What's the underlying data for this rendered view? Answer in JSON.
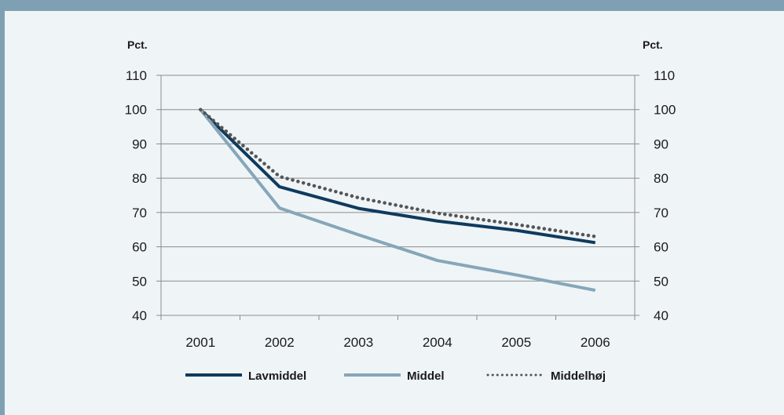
{
  "chart_data": {
    "type": "line",
    "categories": [
      "2001",
      "2002",
      "2003",
      "2004",
      "2005",
      "2006"
    ],
    "y_left": {
      "label": "Pct.",
      "ylim": [
        40,
        110
      ],
      "ticks": [
        40,
        50,
        60,
        70,
        80,
        90,
        100,
        110
      ]
    },
    "y_right": {
      "label": "Pct.",
      "ylim": [
        40,
        110
      ],
      "ticks": [
        40,
        50,
        60,
        70,
        80,
        90,
        100,
        110
      ]
    },
    "grid": true,
    "legend_position": "bottom",
    "series": [
      {
        "name": "Lavmiddel",
        "values": [
          100,
          77.5,
          71.2,
          67.5,
          64.8,
          61.2
        ],
        "color": "#0f3a5c",
        "style": "solid"
      },
      {
        "name": "Middel",
        "values": [
          100,
          71.3,
          63.5,
          56.0,
          51.8,
          47.3
        ],
        "color": "#86a6b9",
        "style": "solid"
      },
      {
        "name": "Middelhøj",
        "values": [
          100,
          80.5,
          74.3,
          69.8,
          66.5,
          63.0
        ],
        "color": "#555555",
        "style": "dotted"
      }
    ]
  }
}
